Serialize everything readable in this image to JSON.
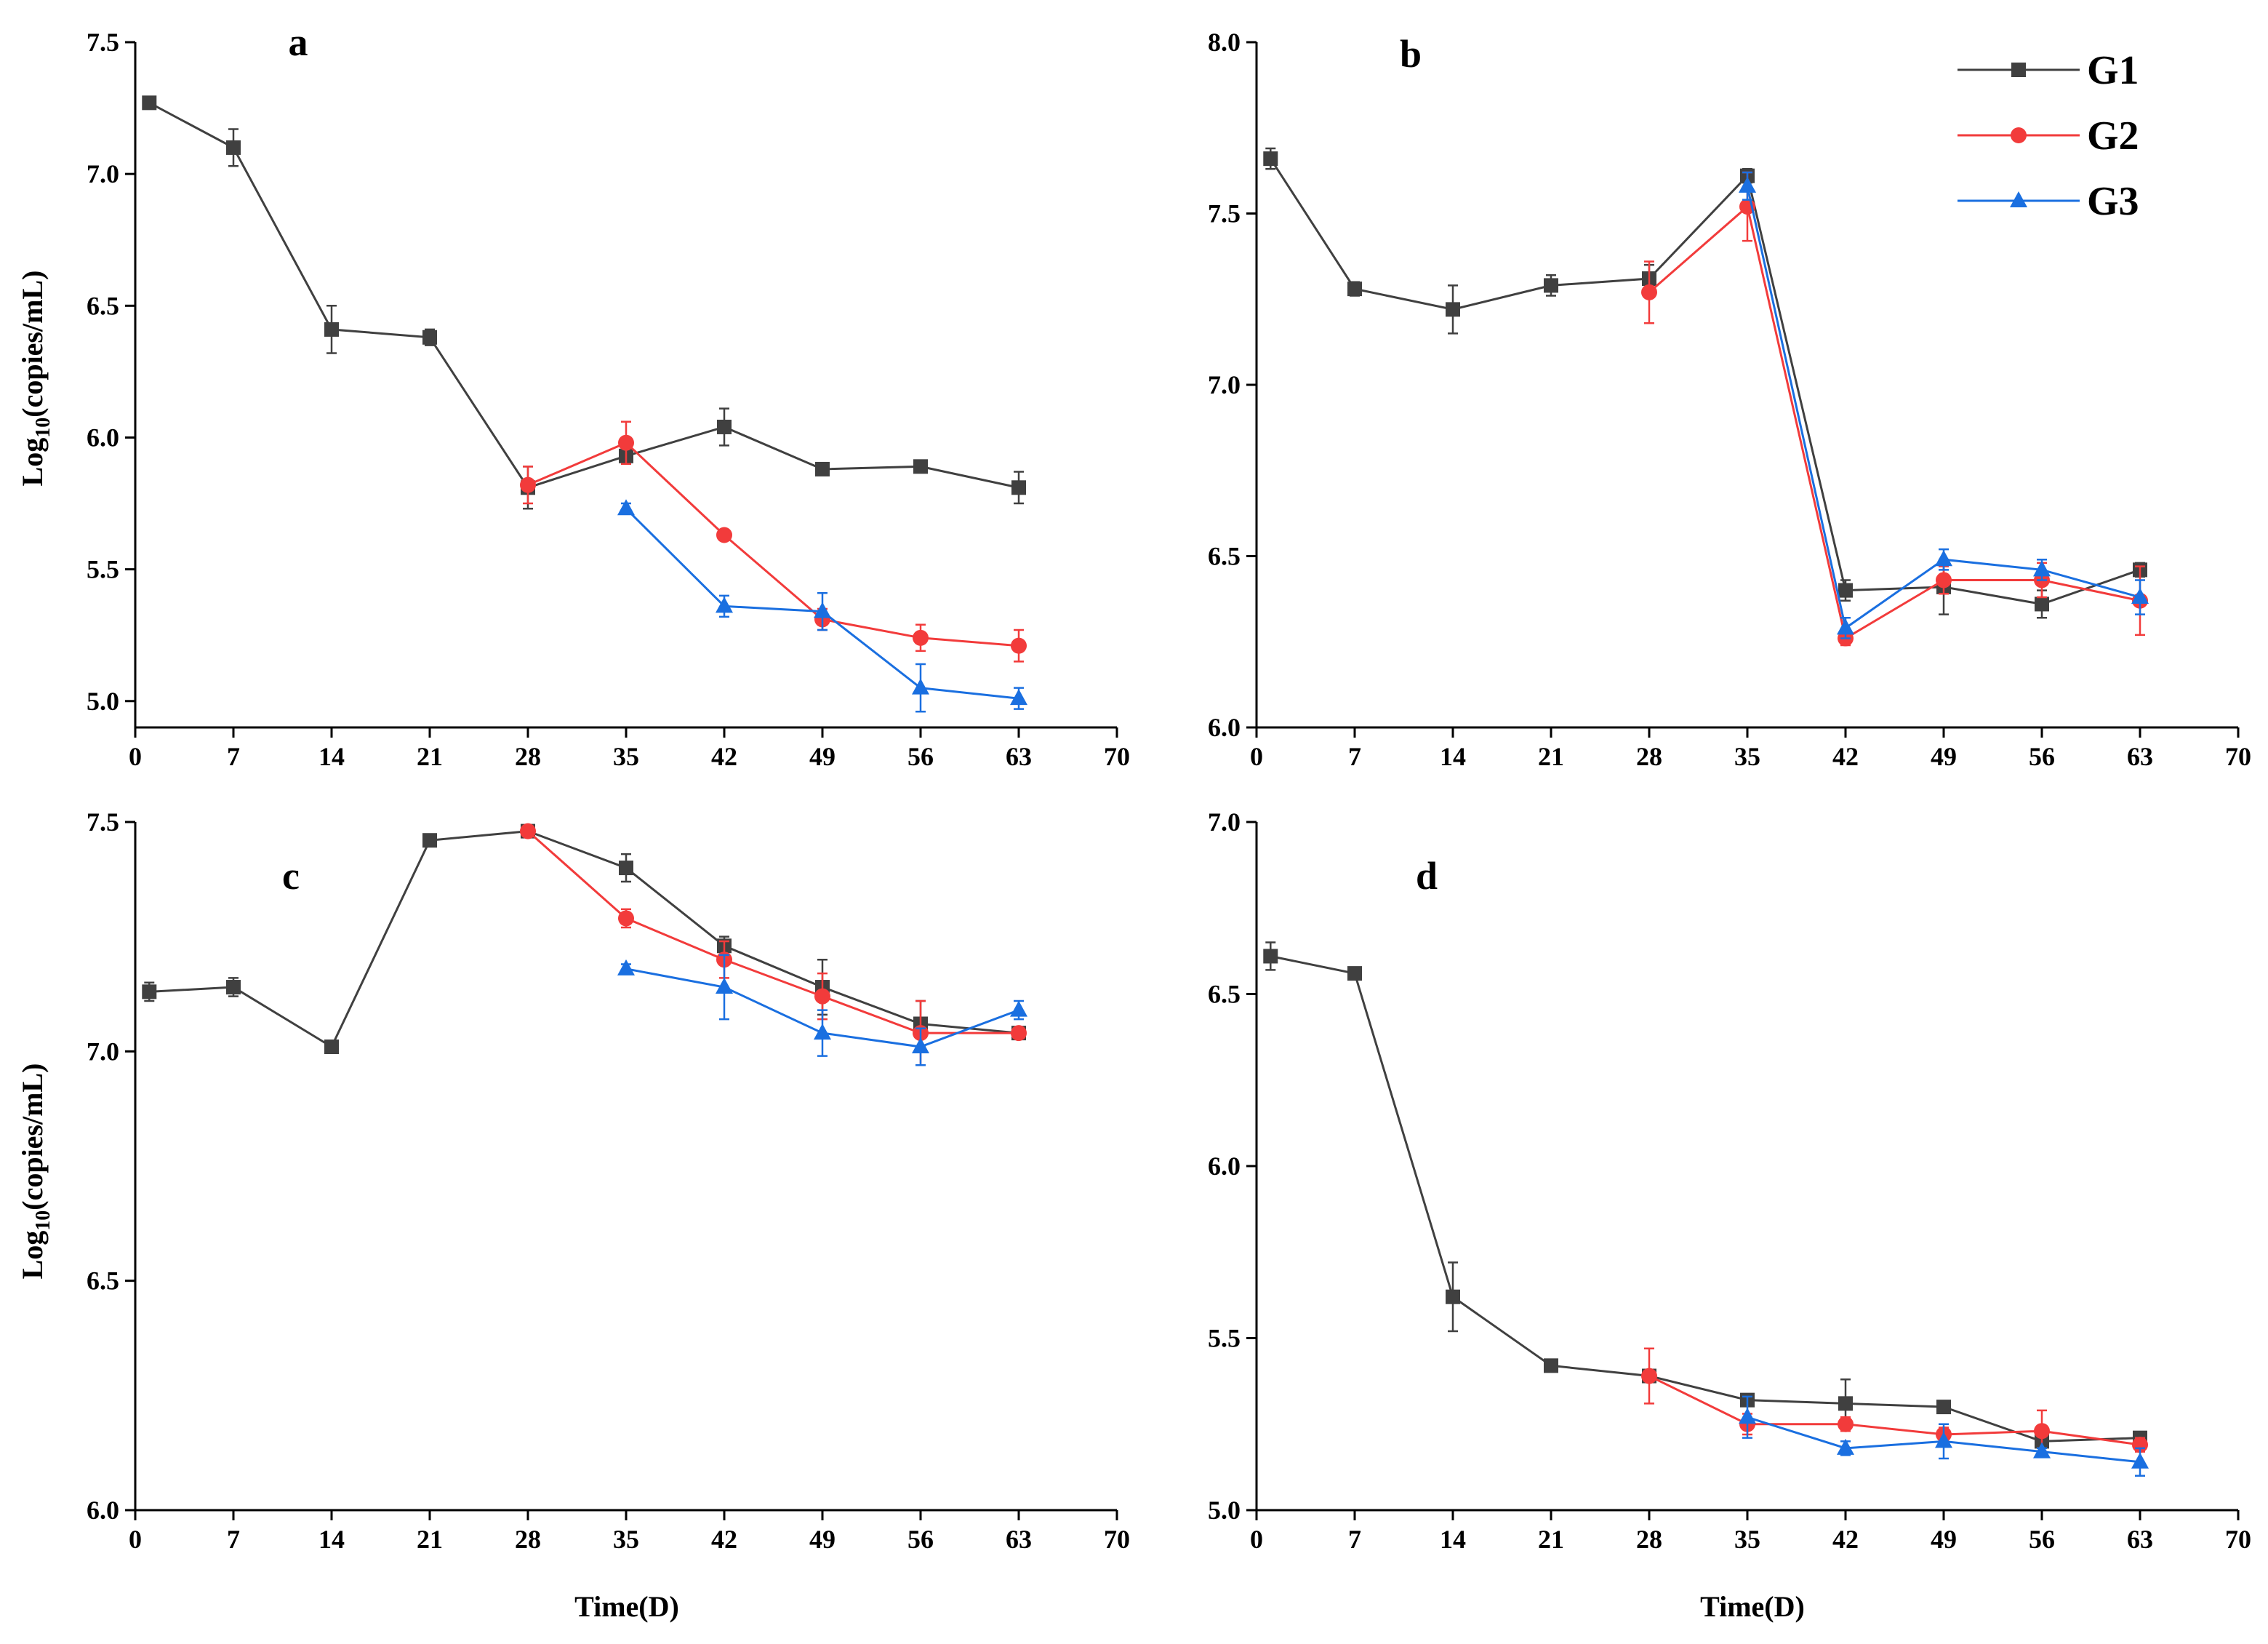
{
  "legend": {
    "entries": [
      {
        "name": "G1",
        "color": "#404040",
        "marker": "square"
      },
      {
        "name": "G2",
        "color": "#f23b3b",
        "marker": "circle"
      },
      {
        "name": "G3",
        "color": "#1a6fe0",
        "marker": "triangle"
      }
    ]
  },
  "chart_data": [
    {
      "type": "line",
      "panel": "a",
      "xlabel": "",
      "ylabel": "Log10(copies/mL)",
      "xlim": [
        0,
        70
      ],
      "ylim": [
        4.9,
        7.5
      ],
      "x_ticks": [
        "0",
        "7",
        "14",
        "21",
        "28",
        "35",
        "42",
        "49",
        "56",
        "63",
        "70"
      ],
      "y_ticks": [
        "5.0",
        "5.5",
        "6.0",
        "6.5",
        "7.0",
        "7.5"
      ],
      "x_tick_values": [
        0,
        7,
        14,
        21,
        28,
        35,
        42,
        49,
        56,
        63,
        70
      ],
      "y_tick_values": [
        5.0,
        5.5,
        6.0,
        6.5,
        7.0,
        7.5
      ],
      "series": [
        {
          "name": "G1",
          "x": [
            1,
            7,
            14,
            21,
            28,
            35,
            42,
            49,
            56,
            63
          ],
          "y": [
            7.27,
            7.1,
            6.41,
            6.38,
            5.81,
            5.93,
            6.04,
            5.88,
            5.89,
            5.81
          ],
          "err": [
            0.01,
            0.07,
            0.09,
            0.03,
            0.08,
            0.03,
            0.07,
            0.02,
            0.02,
            0.06
          ]
        },
        {
          "name": "G2",
          "x": [
            28,
            35,
            42,
            49,
            56,
            63
          ],
          "y": [
            5.82,
            5.98,
            5.63,
            5.31,
            5.24,
            5.21
          ],
          "err": [
            0.07,
            0.08,
            0.02,
            0.04,
            0.05,
            0.06
          ]
        },
        {
          "name": "G3",
          "x": [
            35,
            42,
            49,
            56,
            63
          ],
          "y": [
            5.73,
            5.36,
            5.34,
            5.05,
            5.01
          ],
          "err": [
            0.02,
            0.04,
            0.07,
            0.09,
            0.04
          ]
        }
      ]
    },
    {
      "type": "line",
      "panel": "b",
      "xlabel": "",
      "ylabel": "",
      "xlim": [
        0,
        70
      ],
      "ylim": [
        6.0,
        8.0
      ],
      "x_ticks": [
        "0",
        "7",
        "14",
        "21",
        "28",
        "35",
        "42",
        "49",
        "56",
        "63",
        "70"
      ],
      "y_ticks": [
        "6.0",
        "6.5",
        "7.0",
        "7.5",
        "8.0"
      ],
      "x_tick_values": [
        0,
        7,
        14,
        21,
        28,
        35,
        42,
        49,
        56,
        63,
        70
      ],
      "y_tick_values": [
        6.0,
        6.5,
        7.0,
        7.5,
        8.0
      ],
      "series": [
        {
          "name": "G1",
          "x": [
            1,
            7,
            14,
            21,
            28,
            35,
            42,
            49,
            56,
            63
          ],
          "y": [
            7.66,
            7.28,
            7.22,
            7.29,
            7.31,
            7.61,
            6.4,
            6.41,
            6.36,
            6.46
          ],
          "err": [
            0.03,
            0.02,
            0.07,
            0.03,
            0.04,
            0.02,
            0.03,
            0.08,
            0.04,
            0.02
          ]
        },
        {
          "name": "G2",
          "x": [
            28,
            35,
            42,
            49,
            56,
            63
          ],
          "y": [
            7.27,
            7.52,
            6.26,
            6.43,
            6.43,
            6.37
          ],
          "err": [
            0.09,
            0.1,
            0.02,
            0.04,
            0.05,
            0.1
          ]
        },
        {
          "name": "G3",
          "x": [
            35,
            42,
            49,
            56,
            63
          ],
          "y": [
            7.58,
            6.29,
            6.49,
            6.46,
            6.38
          ],
          "err": [
            0.04,
            0.03,
            0.03,
            0.03,
            0.05
          ]
        }
      ]
    },
    {
      "type": "line",
      "panel": "c",
      "xlabel": "Time(D)",
      "ylabel": "Log10(copies/mL)",
      "xlim": [
        0,
        70
      ],
      "ylim": [
        6.0,
        7.5
      ],
      "x_ticks": [
        "0",
        "7",
        "14",
        "21",
        "28",
        "35",
        "42",
        "49",
        "56",
        "63",
        "70"
      ],
      "y_ticks": [
        "6.0",
        "6.5",
        "7.0",
        "7.5"
      ],
      "x_tick_values": [
        0,
        7,
        14,
        21,
        28,
        35,
        42,
        49,
        56,
        63,
        70
      ],
      "y_tick_values": [
        6.0,
        6.5,
        7.0,
        7.5
      ],
      "series": [
        {
          "name": "G1",
          "x": [
            1,
            7,
            14,
            21,
            28,
            35,
            42,
            49,
            56,
            63
          ],
          "y": [
            7.13,
            7.14,
            7.01,
            7.46,
            7.48,
            7.4,
            7.23,
            7.14,
            7.06,
            7.04
          ],
          "err": [
            0.02,
            0.02,
            0.01,
            0.01,
            0.01,
            0.03,
            0.02,
            0.06,
            0.05,
            0.01
          ]
        },
        {
          "name": "G2",
          "x": [
            28,
            35,
            42,
            49,
            56,
            63
          ],
          "y": [
            7.48,
            7.29,
            7.2,
            7.12,
            7.04,
            7.04
          ],
          "err": [
            0.01,
            0.02,
            0.04,
            0.05,
            0.07,
            0.01
          ]
        },
        {
          "name": "G3",
          "x": [
            35,
            42,
            49,
            56,
            63
          ],
          "y": [
            7.18,
            7.14,
            7.04,
            7.01,
            7.09
          ],
          "err": [
            0.01,
            0.07,
            0.05,
            0.04,
            0.02
          ]
        }
      ]
    },
    {
      "type": "line",
      "panel": "d",
      "xlabel": "Time(D)",
      "ylabel": "",
      "xlim": [
        0,
        70
      ],
      "ylim": [
        5.0,
        7.0
      ],
      "x_ticks": [
        "0",
        "7",
        "14",
        "21",
        "28",
        "35",
        "42",
        "49",
        "56",
        "63",
        "70"
      ],
      "y_ticks": [
        "5.0",
        "5.5",
        "6.0",
        "6.5",
        "7.0"
      ],
      "x_tick_values": [
        0,
        7,
        14,
        21,
        28,
        35,
        42,
        49,
        56,
        63,
        70
      ],
      "y_tick_values": [
        5.0,
        5.5,
        6.0,
        6.5,
        7.0
      ],
      "series": [
        {
          "name": "G1",
          "x": [
            1,
            7,
            14,
            21,
            28,
            35,
            42,
            49,
            56,
            63
          ],
          "y": [
            6.61,
            6.56,
            5.62,
            5.42,
            5.39,
            5.32,
            5.31,
            5.3,
            5.2,
            5.21
          ],
          "err": [
            0.04,
            0.01,
            0.1,
            0.01,
            0.01,
            0.01,
            0.07,
            0.01,
            0.01,
            0.01
          ]
        },
        {
          "name": "G2",
          "x": [
            28,
            35,
            42,
            49,
            56,
            63
          ],
          "y": [
            5.39,
            5.25,
            5.25,
            5.22,
            5.23,
            5.19
          ],
          "err": [
            0.08,
            0.03,
            0.02,
            0.02,
            0.06,
            0.02
          ]
        },
        {
          "name": "G3",
          "x": [
            35,
            42,
            49,
            56,
            63
          ],
          "y": [
            5.27,
            5.18,
            5.2,
            5.17,
            5.14
          ],
          "err": [
            0.06,
            0.02,
            0.05,
            0.01,
            0.04
          ]
        }
      ]
    }
  ]
}
